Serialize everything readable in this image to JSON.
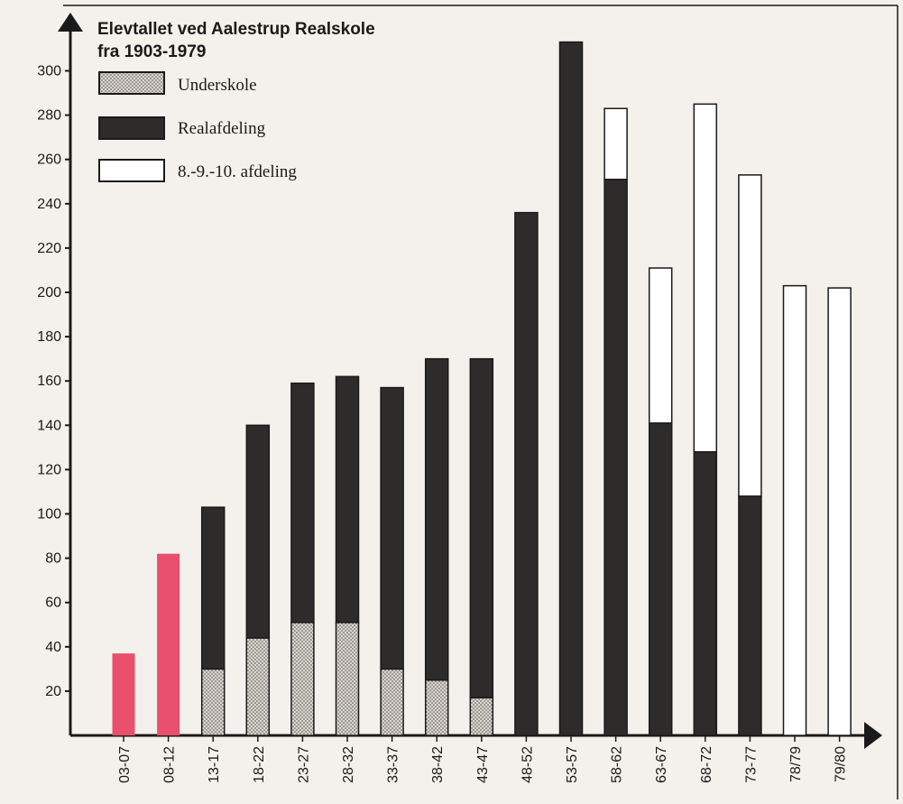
{
  "chart_data": {
    "type": "bar",
    "stacked": true,
    "title": "Elevtallet ved Aalestrup Realskole fra 1903-1979",
    "title_lines": [
      "Elevtallet ved Aalestrup Realskole",
      "fra 1903-1979"
    ],
    "categories": [
      "03-07",
      "08-12",
      "13-17",
      "18-22",
      "23-27",
      "28-32",
      "33-37",
      "38-42",
      "43-47",
      "48-52",
      "53-57",
      "58-62",
      "63-67",
      "68-72",
      "73-77",
      "78/79",
      "79/80"
    ],
    "y_ticks": [
      20,
      40,
      60,
      80,
      100,
      120,
      140,
      160,
      180,
      200,
      220,
      240,
      260,
      280,
      300
    ],
    "ylim": [
      0,
      315
    ],
    "series": [
      {
        "name": "Underskole",
        "color": "#cfcac2",
        "pattern": "dotted",
        "values": [
          37,
          82,
          30,
          44,
          51,
          51,
          30,
          25,
          17,
          0,
          0,
          0,
          0,
          0,
          0,
          0,
          0
        ]
      },
      {
        "name": "Realafdeling",
        "color": "#2e2b2b",
        "values": [
          0,
          0,
          73,
          96,
          108,
          111,
          127,
          145,
          153,
          236,
          313,
          251,
          141,
          128,
          108,
          0,
          0
        ]
      },
      {
        "name": "8.-9.-10. afdeling",
        "color": "#ffffff",
        "values": [
          0,
          0,
          0,
          0,
          0,
          0,
          0,
          0,
          0,
          0,
          0,
          32,
          70,
          157,
          145,
          203,
          202
        ]
      }
    ],
    "highlight_color": "#e8506e",
    "highlight_categories": [
      "03-07",
      "08-12"
    ],
    "legend_placement": "top-left",
    "grid": false,
    "xlabel": "",
    "ylabel": ""
  }
}
